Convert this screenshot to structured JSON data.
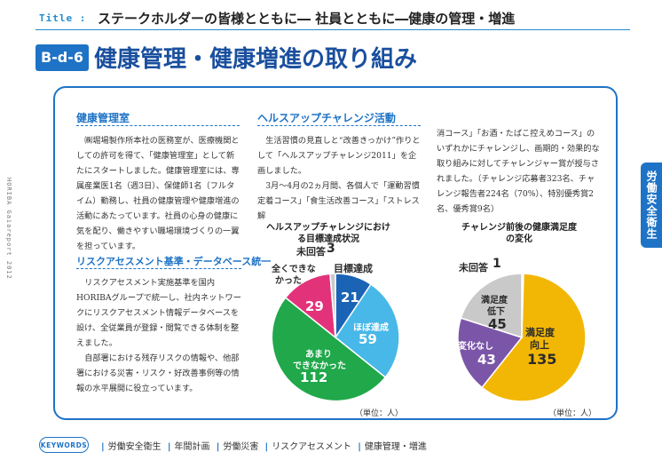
{
  "header": {
    "title_label": "Title :",
    "title_text": "ステークホルダーの皆様とともに― 社員とともに―健康の管理・増進",
    "badge": "B-d-6",
    "heading": "健康管理・健康増進の取り組み"
  },
  "side_tab": "労働安全衛生",
  "vertical_caption": "HORIBA Gaiareport 2012",
  "col1": {
    "sec1_title": "健康管理室",
    "sec1_p1": "㈱堀場製作所本社の医務室が、医療機関としての許可を得て、「健康管理室」として新たにスタートしました。健康管理室には、専属産業医1名（週3日）、保健師1名（フルタイム）勤務し、社員の健康管理や健康増進の活動にあたっています。社員の心身の健康に気を配り、働きやすい職場環境づくりの一翼を担っています。",
    "sec2_title": "リスクアセスメント基準・データベース統一",
    "sec2_p1": "リスクアセスメント実施基準を国内HORIBAグループで統一し、社内ネットワークにリスクアセスメント情報データベースを設け、全従業員が登録・閲覧できる体制を整えました。",
    "sec2_p2": "自部署における残存リスクの情報や、他部署における災害・リスク・好改善事例等の情報の水平展開に役立っています。"
  },
  "col2": {
    "sec_title": "ヘルスアップチャレンジ活動",
    "p1": "生活習慣の見直しと“改善きっかけ”作りとして「ヘルスアップチャレンジ2011」を企画しました。",
    "p2": "3月～4月の2ヵ月間、各個人で「運動習慣定着コース」「食生活改善コース」「ストレス解"
  },
  "col3": {
    "p1": "消コース」「お酒・たばこ控えめコース」のいずれかにチャレンジし、画期的・効果的な取り組みに対してチャレンジャー賞が授与されました。（チャレンジ応募者323名、チャレンジ報告者224名（70%）、特別優秀賞2名、優秀賞9名）"
  },
  "chart_data": [
    {
      "type": "pie",
      "title": "ヘルスアップチャレンジにおける目標達成状況",
      "unit": "（単位：人）",
      "slices": [
        {
          "label": "目標達成",
          "value": 21,
          "color": "#1b63b5"
        },
        {
          "label": "ほぼ達成",
          "value": 59,
          "color": "#48b8e8"
        },
        {
          "label": "あまりできなかった",
          "value": 112,
          "color": "#20a84a"
        },
        {
          "label": "全くできなかった",
          "value": 29,
          "color": "#e2337a"
        },
        {
          "label": "未回答",
          "value": 3,
          "color": "#c9c9c9"
        }
      ]
    },
    {
      "type": "pie",
      "title": "チャレンジ前後の健康満足度の変化",
      "unit": "（単位：人）",
      "slices": [
        {
          "label": "未回答",
          "value": 1,
          "color": "#c9c9c9"
        },
        {
          "label": "満足度向上",
          "value": 135,
          "color": "#f2b705"
        },
        {
          "label": "変化なし",
          "value": 43,
          "color": "#7b56a8"
        },
        {
          "label": "満足度低下",
          "value": 45,
          "color": "#c9c9c9"
        }
      ]
    }
  ],
  "pie_labels": {
    "p1_top_label": "目標達成",
    "p1_top_value": "21",
    "p1_right_label": "ほぼ達成",
    "p1_right_value": "59",
    "p1_bottom_label1": "あまり",
    "p1_bottom_label2": "できなかった",
    "p1_bottom_value": "112",
    "p1_left_label1": "全くできな",
    "p1_left_label2": "かった",
    "p1_left_value": "29",
    "p1_na_label": "未回答",
    "p1_na_value": "3",
    "p2_na_label": "未回答",
    "p2_na_value": "1",
    "p2_down_label1": "満足度",
    "p2_down_label2": "低下",
    "p2_down_value": "45",
    "p2_up_label1": "満足度",
    "p2_up_label2": "向上",
    "p2_up_value": "135",
    "p2_none_label": "変化なし",
    "p2_none_value": "43"
  },
  "keywords": {
    "badge": "KEYWORDS",
    "items": [
      "労働安全衛生",
      "年間計画",
      "労働災害",
      "リスクアセスメント",
      "健康管理・増進"
    ]
  },
  "colors": {
    "accent": "#1e73c6",
    "heading": "#1a4f9e"
  }
}
